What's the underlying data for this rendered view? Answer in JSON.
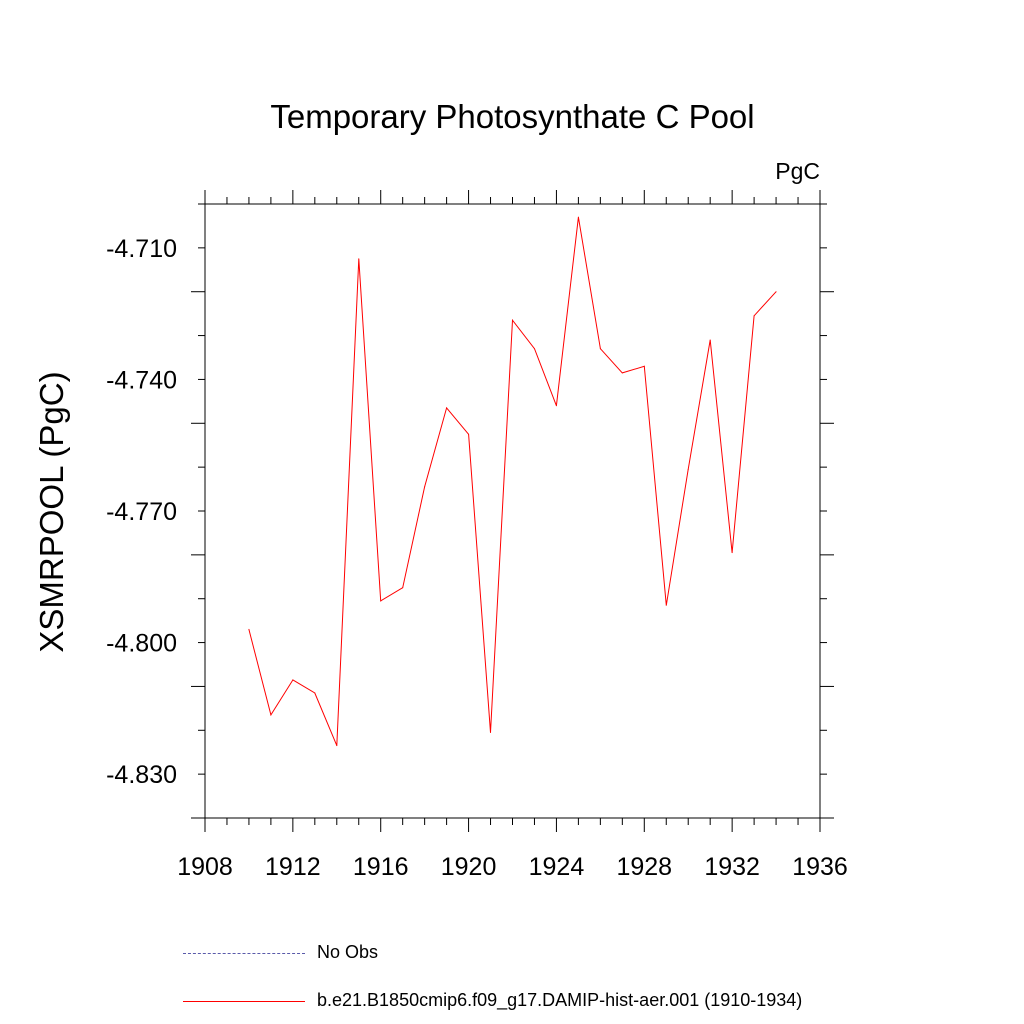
{
  "chart_data": {
    "type": "line",
    "title": "Temporary Photosynthate C Pool",
    "units_label": "PgC",
    "ylabel": "XSMRPOOL  (PgC)",
    "xlim": [
      1908,
      1936
    ],
    "ylim": [
      -4.84,
      -4.7
    ],
    "x_ticks": [
      1908,
      1912,
      1916,
      1920,
      1924,
      1928,
      1932,
      1936
    ],
    "x_tick_labels": [
      "1908",
      "1912",
      "1916",
      "1920",
      "1924",
      "1928",
      "1932",
      "1936"
    ],
    "y_ticks": [
      -4.71,
      -4.74,
      -4.77,
      -4.8,
      -4.83
    ],
    "y_tick_labels": [
      "-4.710",
      "-4.740",
      "-4.770",
      "-4.800",
      "-4.830"
    ],
    "series": [
      {
        "name": "b.e21.B1850cmip6.f09_g17.DAMIP-hist-aer.001 (1910-1934)",
        "color": "#ff0000",
        "x": [
          1910,
          1911,
          1912,
          1913,
          1914,
          1915,
          1916,
          1917,
          1918,
          1919,
          1920,
          1921,
          1922,
          1923,
          1924,
          1925,
          1926,
          1927,
          1928,
          1929,
          1930,
          1931,
          1932,
          1933,
          1934
        ],
        "y": [
          -4.797,
          -4.8165,
          -4.8085,
          -4.8115,
          -4.8235,
          -4.7125,
          -4.7905,
          -4.7875,
          -4.7645,
          -4.7465,
          -4.7525,
          -4.8205,
          -4.7265,
          -4.733,
          -4.746,
          -4.703,
          -4.733,
          -4.7385,
          -4.737,
          -4.7915,
          -4.7605,
          -4.731,
          -4.7795,
          -4.7255,
          -4.72
        ]
      }
    ],
    "legend": [
      {
        "label": "No Obs",
        "style": "dashed",
        "color": "#5a5aaa"
      },
      {
        "label": "b.e21.B1850cmip6.f09_g17.DAMIP-hist-aer.001 (1910-1934)",
        "style": "solid",
        "color": "#ff0000"
      }
    ],
    "legend_position": "bottom"
  }
}
